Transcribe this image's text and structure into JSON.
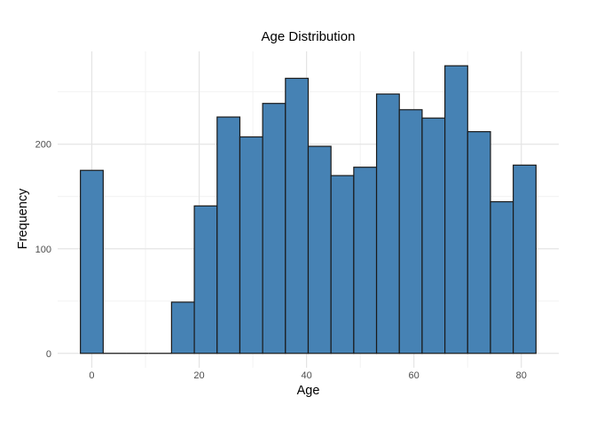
{
  "chart_data": {
    "type": "bar",
    "subtype": "histogram",
    "title": "Age Distribution",
    "xlabel": "Age",
    "ylabel": "Frequency",
    "bin_start": -2.12,
    "bin_width": 4.243,
    "counts": [
      175,
      0,
      0,
      0,
      49,
      141,
      226,
      207,
      239,
      263,
      198,
      170,
      178,
      248,
      233,
      225,
      275,
      212,
      145,
      180
    ],
    "x_ticks": {
      "values": [
        0,
        20,
        40,
        60,
        80
      ],
      "labels": [
        "0",
        "20",
        "40",
        "60",
        "80"
      ]
    },
    "x_minor_ticks": [
      10,
      30,
      50,
      70
    ],
    "y_ticks": {
      "values": [
        0,
        100,
        200
      ],
      "labels": [
        "0",
        "100",
        "200"
      ]
    },
    "y_minor_ticks": [
      50,
      150,
      250
    ],
    "xlim": [
      -6.36,
      86.98
    ],
    "ylim": [
      -13.75,
      288.75
    ],
    "grid": true,
    "legend": false,
    "colors": {
      "bar_fill": "#4682b4",
      "bar_stroke": "#1a1a1a",
      "grid_major": "#e4e4e4",
      "grid_minor": "#f1f1f1",
      "tick_label": "#4d4d4d",
      "text": "#000000",
      "background": "#ffffff"
    }
  }
}
